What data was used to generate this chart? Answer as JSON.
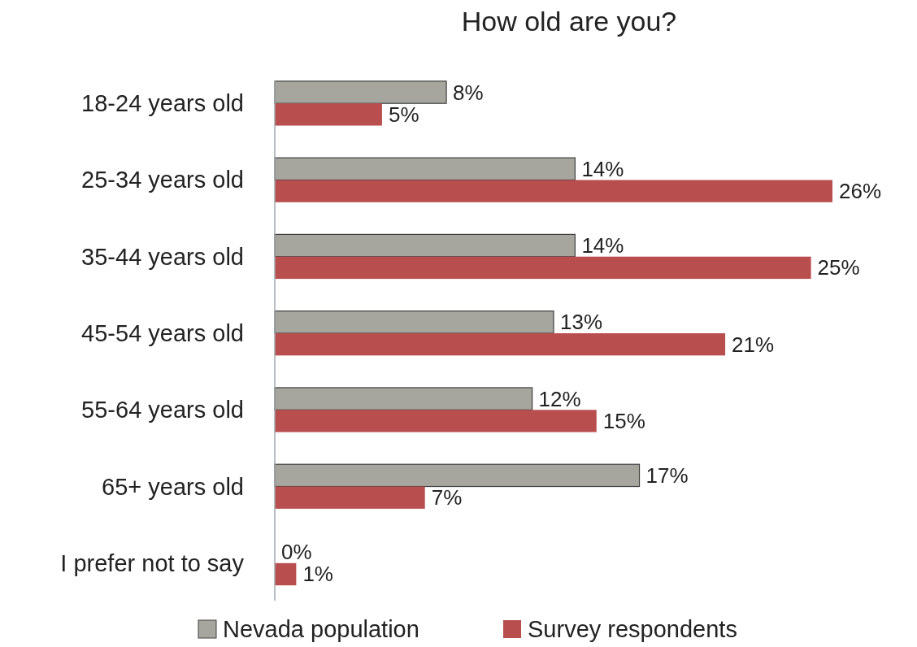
{
  "chart_data": {
    "type": "bar",
    "orientation": "horizontal",
    "title": "How old are you?",
    "categories": [
      "18-24 years old",
      "25-34 years old",
      "35-44 years old",
      "45-54 years old",
      "55-64 years old",
      "65+ years old",
      "I prefer not to say"
    ],
    "series": [
      {
        "name": "Nevada population",
        "color": "#a6a69f",
        "values": [
          8,
          14,
          14,
          13,
          12,
          17,
          0
        ],
        "value_labels": [
          "8%",
          "14%",
          "14%",
          "13%",
          "12%",
          "17%",
          "0%"
        ]
      },
      {
        "name": "Survey respondents",
        "color": "#b94e4f",
        "values": [
          5,
          26,
          25,
          21,
          15,
          7,
          1
        ],
        "value_labels": [
          "5%",
          "26%",
          "25%",
          "21%",
          "15%",
          "7%",
          "1%"
        ]
      }
    ],
    "legend": "bottom"
  }
}
